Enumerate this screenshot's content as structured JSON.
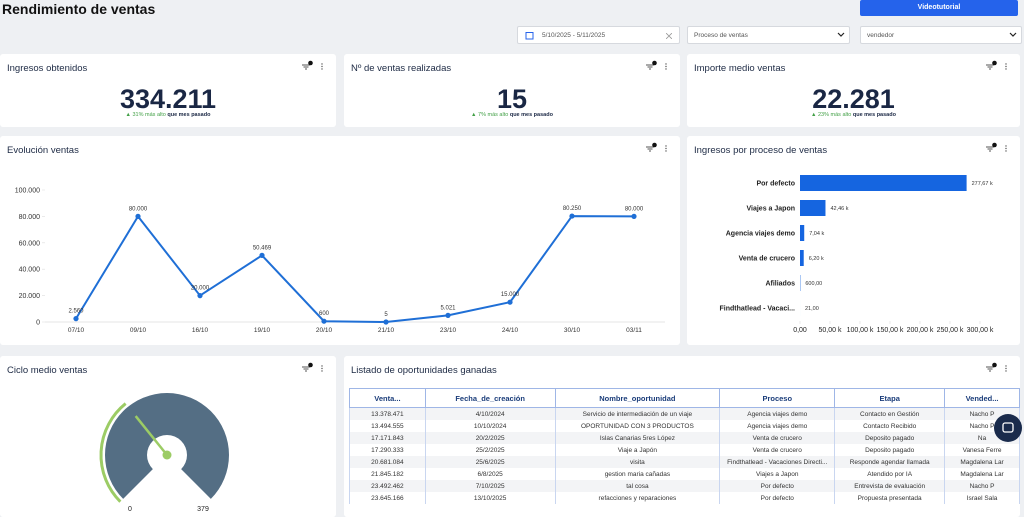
{
  "header": {
    "title": "Rendimiento de ventas",
    "button": "Videotutorial"
  },
  "filters": {
    "date_range": "5/10/2025 - 5/11/2025",
    "process": "Proceso de ventas",
    "seller": "vendedor"
  },
  "kpis": [
    {
      "title": "Ingresos obtenidos",
      "value": "334.211",
      "change": "▲ 31% más alto",
      "comparison": "que mes pasado"
    },
    {
      "title": "Nº de ventas realizadas",
      "value": "15",
      "change": "▲ 7% más alto",
      "comparison": "que mes pasado"
    },
    {
      "title": "Importe medio ventas",
      "value": "22.281",
      "change": "▲ 23% más alto",
      "comparison": "que mes pasado"
    }
  ],
  "chart_data": [
    {
      "type": "line",
      "title": "Evolución ventas",
      "categories": [
        "07/10",
        "09/10",
        "16/10",
        "19/10",
        "20/10",
        "21/10",
        "23/10",
        "24/10",
        "30/10",
        "03/11"
      ],
      "values": [
        2560,
        80000,
        20000,
        50469,
        600,
        5,
        5021,
        15000,
        80250,
        80000
      ],
      "value_labels": [
        "2.560",
        "80.000",
        "20.000",
        "50.469",
        "600",
        "5",
        "5.021",
        "15.000",
        "80.250",
        "80.000"
      ],
      "color": "#1f6fd6",
      "ylim": [
        0,
        100000
      ],
      "yticks": [
        0,
        {
          "value": 20000,
          "label": "20.000"
        },
        {
          "value": 40000,
          "label": "40.000"
        },
        {
          "value": 60000,
          "label": "60.000"
        },
        {
          "value": 80000,
          "label": "80.000"
        },
        {
          "value": 100000,
          "label": "100.000"
        }
      ]
    },
    {
      "type": "bar",
      "orientation": "horizontal",
      "title": "Ingresos por proceso de ventas",
      "categories": [
        "Por defecto",
        "Viajes a Japon",
        "Agencia viajes demo",
        "Venta de crucero",
        "Afiliados",
        "Findthatlead - Vacaci..."
      ],
      "values": [
        277670,
        42460,
        7040,
        6200,
        600,
        21
      ],
      "value_labels": [
        "277,67 k",
        "42,46 k",
        "7,04 k",
        "6,20 k",
        "600,00",
        "21,00"
      ],
      "color": "#1565e0",
      "xlim": [
        0,
        300000
      ],
      "xticks": [
        {
          "value": 0,
          "label": "0,00"
        },
        {
          "value": 50000,
          "label": "50,00 k"
        },
        {
          "value": 100000,
          "label": "100,00 k"
        },
        {
          "value": 150000,
          "label": "150,00 k"
        },
        {
          "value": 200000,
          "label": "200,00 k"
        },
        {
          "value": 250000,
          "label": "250,00 k"
        },
        {
          "value": 300000,
          "label": "300,00 k"
        }
      ]
    },
    {
      "type": "gauge",
      "title": "Ciclo medio ventas",
      "value": 135,
      "min": 0,
      "max": 379,
      "color": "#546e84",
      "value_color": "#9ccc65"
    }
  ],
  "table": {
    "title": "Listado de oportunidades ganadas",
    "columns": [
      "Venta...",
      "Fecha_de_creación",
      "Nombre_oportunidad",
      "Proceso",
      "Etapa",
      "Vended..."
    ],
    "rows": [
      [
        "13.378.471",
        "4/10/2024",
        "Servicio de intermediación de un viaje",
        "Agencia viajes demo",
        "Contacto en Gestión",
        "Nacho P"
      ],
      [
        "13.494.555",
        "10/10/2024",
        "OPORTUNIDAD CON 3 PRODUCTOS",
        "Agencia viajes demo",
        "Contacto Recibido",
        "Nacho P"
      ],
      [
        "17.171.843",
        "20/2/2025",
        "Islas Canarias 5res López",
        "Venta de crucero",
        "Deposito pagado",
        "Na"
      ],
      [
        "17.290.333",
        "25/2/2025",
        "Viaje a Japón",
        "Venta de crucero",
        "Deposito pagado",
        "Vanesa Ferre"
      ],
      [
        "20.681.084",
        "25/6/2025",
        "visita",
        "Findthatlead - Vacaciones Directi...",
        "Responde agendar llamada",
        "Magdalena Lar"
      ],
      [
        "21.845.182",
        "6/8/2025",
        "gestion maria cañadas",
        "Viajes a Japon",
        "Atendido por IA",
        "Magdalena Lar"
      ],
      [
        "23.492.462",
        "7/10/2025",
        "tal cosa",
        "Por defecto",
        "Entrevista de evaluación",
        "Nacho P"
      ],
      [
        "23.645.166",
        "13/10/2025",
        "refacciones y reparaciones",
        "Por defecto",
        "Propuesta presentada",
        "Israel Sala"
      ]
    ]
  }
}
